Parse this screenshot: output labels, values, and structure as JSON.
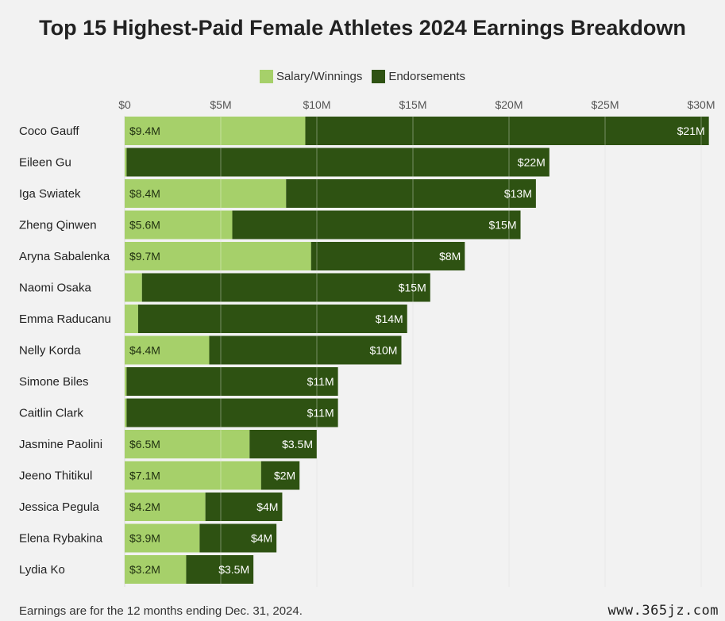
{
  "colors": {
    "salary": "#a6d06a",
    "endorsements": "#2e5212",
    "background": "#f2f2f2",
    "grid": "#ffffff"
  },
  "footnote": "Earnings are for the 12 months ending Dec. 31, 2024.",
  "watermark": "www.365jz.com",
  "chart_data": {
    "type": "bar",
    "orientation": "horizontal",
    "stacked": true,
    "title": "Top 15 Highest-Paid Female Athletes 2024 Earnings Breakdown",
    "legend_position": "top",
    "grid": true,
    "xlim": [
      0,
      31
    ],
    "x_ticks": [
      0,
      5,
      10,
      15,
      20,
      25,
      30
    ],
    "x_tick_labels": [
      "$0",
      "$5M",
      "$10M",
      "$15M",
      "$20M",
      "$25M",
      "$30M"
    ],
    "categories": [
      "Coco Gauff",
      "Eileen Gu",
      "Iga Swiatek",
      "Zheng Qinwen",
      "Aryna Sabalenka",
      "Naomi Osaka",
      "Emma Raducanu",
      "Nelly Korda",
      "Simone Biles",
      "Caitlin Clark",
      "Jasmine Paolini",
      "Jeeno Thitikul",
      "Jessica Pegula",
      "Elena Rybakina",
      "Lydia Ko"
    ],
    "series": [
      {
        "name": "Salary/Winnings",
        "values": [
          9.4,
          0.1,
          8.4,
          5.6,
          9.7,
          0.9,
          0.7,
          4.4,
          0.1,
          0.1,
          6.5,
          7.1,
          4.2,
          3.9,
          3.2
        ],
        "labels": [
          "$9.4M",
          "",
          "$8.4M",
          "$5.6M",
          "$9.7M",
          "",
          "",
          "$4.4M",
          "",
          "",
          "$6.5M",
          "$7.1M",
          "$4.2M",
          "$3.9M",
          "$3.2M"
        ]
      },
      {
        "name": "Endorsements",
        "values": [
          21,
          22,
          13,
          15,
          8,
          15,
          14,
          10,
          11,
          11,
          3.5,
          2,
          4,
          4,
          3.5
        ],
        "labels": [
          "$21M",
          "$22M",
          "$13M",
          "$15M",
          "$8M",
          "$15M",
          "$14M",
          "$10M",
          "$11M",
          "$11M",
          "$3.5M",
          "$2M",
          "$4M",
          "$4M",
          "$3.5M"
        ]
      }
    ]
  }
}
